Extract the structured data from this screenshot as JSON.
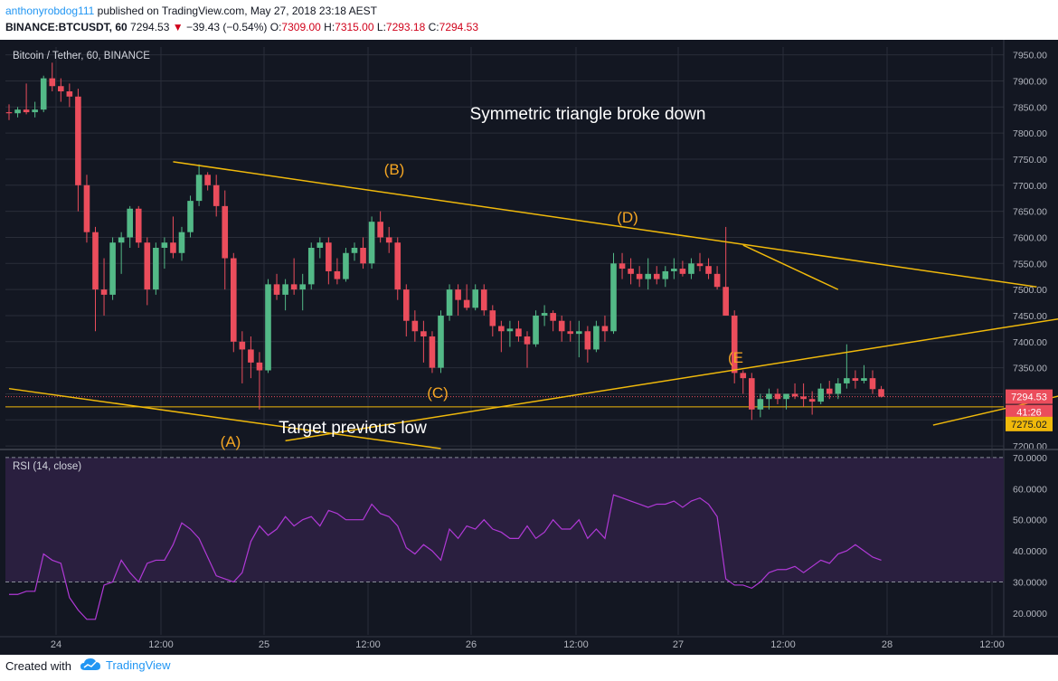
{
  "header": {
    "author": "anthonyrobdog111",
    "published_text": " published on TradingView.com, May 27, 2018 23:18 AEST",
    "symbol": "BINANCE:BTCUSDT, 60",
    "price": "7294.53",
    "change": "−39.43 (−0.54%)",
    "o_label": "O:",
    "o_value": "7309.00",
    "h_label": "H:",
    "h_value": "7315.00",
    "l_label": "L:",
    "l_value": "7293.18",
    "c_label": "C:",
    "c_value": "7294.53"
  },
  "colors": {
    "background": "#131722",
    "grid": "#2a2e39",
    "up": "#53b987",
    "down": "#eb4d5c",
    "trendline": "#f0b90b",
    "annotation": "#f5a623",
    "rsi_line": "#b039d6",
    "rsi_band": "#2a1f3f"
  },
  "chart_data": [
    {
      "type": "candlestick",
      "title": "Bitcoin / Tether, 60, BINANCE",
      "x_tick_labels": [
        "24",
        "12:00",
        "25",
        "12:00",
        "26",
        "12:00",
        "27",
        "12:00",
        "28",
        "12:00"
      ],
      "y_tick_labels": [
        "7950.00",
        "7900.00",
        "7850.00",
        "7800.00",
        "7750.00",
        "7700.00",
        "7650.00",
        "7600.00",
        "7550.00",
        "7500.00",
        "7450.00",
        "7400.00",
        "7350.00",
        "7300.00",
        "7250.00",
        "7200.00"
      ],
      "ylim": [
        7195,
        7965
      ],
      "price_tags": [
        {
          "label": "7294.53",
          "value": 7294.53
        },
        {
          "label": "41:26",
          "value": 7272
        },
        {
          "label": "7275.02",
          "value": 7275.02
        }
      ],
      "candles": [
        [
          7840,
          7855,
          7825,
          7838
        ],
        [
          7838,
          7850,
          7830,
          7845
        ],
        [
          7845,
          7895,
          7836,
          7840
        ],
        [
          7840,
          7860,
          7830,
          7845
        ],
        [
          7845,
          7910,
          7840,
          7905
        ],
        [
          7905,
          7935,
          7880,
          7890
        ],
        [
          7890,
          7905,
          7860,
          7880
        ],
        [
          7880,
          7895,
          7850,
          7870
        ],
        [
          7870,
          7885,
          7650,
          7700
        ],
        [
          7700,
          7720,
          7590,
          7610
        ],
        [
          7610,
          7620,
          7420,
          7500
        ],
        [
          7500,
          7560,
          7450,
          7490
        ],
        [
          7490,
          7600,
          7480,
          7590
        ],
        [
          7590,
          7610,
          7530,
          7600
        ],
        [
          7600,
          7660,
          7580,
          7655
        ],
        [
          7655,
          7660,
          7580,
          7590
        ],
        [
          7590,
          7600,
          7470,
          7500
        ],
        [
          7500,
          7590,
          7490,
          7580
        ],
        [
          7580,
          7600,
          7540,
          7590
        ],
        [
          7590,
          7640,
          7560,
          7570
        ],
        [
          7570,
          7620,
          7555,
          7610
        ],
        [
          7610,
          7680,
          7600,
          7670
        ],
        [
          7670,
          7740,
          7660,
          7720
        ],
        [
          7720,
          7725,
          7690,
          7700
        ],
        [
          7700,
          7720,
          7640,
          7660
        ],
        [
          7660,
          7690,
          7500,
          7560
        ],
        [
          7560,
          7570,
          7380,
          7400
        ],
        [
          7400,
          7420,
          7320,
          7385
        ],
        [
          7385,
          7410,
          7330,
          7360
        ],
        [
          7360,
          7380,
          7270,
          7345
        ],
        [
          7345,
          7520,
          7340,
          7510
        ],
        [
          7510,
          7530,
          7480,
          7490
        ],
        [
          7490,
          7520,
          7460,
          7510
        ],
        [
          7510,
          7560,
          7490,
          7500
        ],
        [
          7500,
          7530,
          7460,
          7510
        ],
        [
          7510,
          7590,
          7500,
          7580
        ],
        [
          7580,
          7600,
          7560,
          7590
        ],
        [
          7590,
          7600,
          7510,
          7535
        ],
        [
          7535,
          7560,
          7510,
          7520
        ],
        [
          7520,
          7580,
          7515,
          7570
        ],
        [
          7570,
          7590,
          7555,
          7580
        ],
        [
          7580,
          7600,
          7540,
          7550
        ],
        [
          7550,
          7640,
          7540,
          7630
        ],
        [
          7630,
          7650,
          7590,
          7600
        ],
        [
          7600,
          7620,
          7570,
          7590
        ],
        [
          7590,
          7600,
          7480,
          7500
        ],
        [
          7500,
          7510,
          7410,
          7440
        ],
        [
          7440,
          7460,
          7400,
          7420
        ],
        [
          7420,
          7440,
          7360,
          7410
        ],
        [
          7410,
          7420,
          7340,
          7350
        ],
        [
          7350,
          7460,
          7340,
          7450
        ],
        [
          7450,
          7510,
          7440,
          7500
        ],
        [
          7500,
          7510,
          7450,
          7480
        ],
        [
          7480,
          7510,
          7460,
          7465
        ],
        [
          7465,
          7510,
          7460,
          7500
        ],
        [
          7500,
          7510,
          7450,
          7460
        ],
        [
          7460,
          7470,
          7410,
          7430
        ],
        [
          7430,
          7440,
          7380,
          7420
        ],
        [
          7420,
          7440,
          7390,
          7425
        ],
        [
          7425,
          7440,
          7400,
          7410
        ],
        [
          7410,
          7420,
          7350,
          7395
        ],
        [
          7395,
          7460,
          7390,
          7450
        ],
        [
          7450,
          7470,
          7430,
          7455
        ],
        [
          7455,
          7460,
          7420,
          7440
        ],
        [
          7440,
          7450,
          7400,
          7420
        ],
        [
          7420,
          7440,
          7400,
          7415
        ],
        [
          7415,
          7440,
          7370,
          7420
        ],
        [
          7420,
          7430,
          7360,
          7385
        ],
        [
          7385,
          7440,
          7380,
          7430
        ],
        [
          7430,
          7450,
          7400,
          7420
        ],
        [
          7420,
          7570,
          7415,
          7550
        ],
        [
          7550,
          7570,
          7520,
          7540
        ],
        [
          7540,
          7560,
          7510,
          7530
        ],
        [
          7530,
          7545,
          7505,
          7520
        ],
        [
          7520,
          7560,
          7500,
          7530
        ],
        [
          7530,
          7545,
          7510,
          7520
        ],
        [
          7520,
          7545,
          7505,
          7535
        ],
        [
          7535,
          7560,
          7520,
          7540
        ],
        [
          7540,
          7555,
          7525,
          7530
        ],
        [
          7530,
          7560,
          7520,
          7550
        ],
        [
          7550,
          7570,
          7535,
          7545
        ],
        [
          7545,
          7560,
          7520,
          7530
        ],
        [
          7530,
          7545,
          7500,
          7505
        ],
        [
          7505,
          7620,
          7450,
          7450
        ],
        [
          7450,
          7460,
          7320,
          7340
        ],
        [
          7340,
          7345,
          7300,
          7330
        ],
        [
          7330,
          7340,
          7250,
          7270
        ],
        [
          7270,
          7300,
          7255,
          7290
        ],
        [
          7290,
          7310,
          7270,
          7300
        ],
        [
          7300,
          7310,
          7280,
          7290
        ],
        [
          7290,
          7300,
          7270,
          7300
        ],
        [
          7300,
          7320,
          7290,
          7295
        ],
        [
          7295,
          7320,
          7275,
          7290
        ],
        [
          7290,
          7305,
          7260,
          7285
        ],
        [
          7285,
          7320,
          7280,
          7310
        ],
        [
          7310,
          7325,
          7290,
          7300
        ],
        [
          7300,
          7330,
          7290,
          7320
        ],
        [
          7320,
          7395,
          7310,
          7330
        ],
        [
          7330,
          7345,
          7310,
          7325
        ],
        [
          7325,
          7355,
          7320,
          7330
        ],
        [
          7330,
          7345,
          7300,
          7309
        ],
        [
          7309,
          7315,
          7293,
          7294.53
        ]
      ],
      "annotations": [
        "Symmetric triangle broke down",
        "(B)",
        "(D)",
        "(E",
        "(C)",
        "(A)",
        "Target previous low"
      ],
      "trendlines": [
        {
          "name": "upper-triangle",
          "x": [
            19,
            119
          ],
          "y": [
            7745,
            7505
          ]
        },
        {
          "name": "lower-triangle",
          "x": [
            32,
            124
          ],
          "y": [
            7210,
            7450
          ]
        },
        {
          "name": "base-line",
          "x": [
            0,
            50
          ],
          "y": [
            7310,
            7195
          ]
        },
        {
          "name": "D-wedge",
          "x": [
            85,
            96
          ],
          "y": [
            7585,
            7500
          ]
        },
        {
          "name": "E-support",
          "x": [
            107,
            124
          ],
          "y": [
            7240,
            7305
          ]
        }
      ],
      "horizontal_levels": [
        7275.02
      ]
    },
    {
      "type": "line",
      "title": "RSI (14, close)",
      "ylim": [
        13,
        72
      ],
      "y_tick_labels": [
        "70.0000",
        "60.0000",
        "50.0000",
        "40.0000",
        "30.0000",
        "20.0000"
      ],
      "band": [
        30,
        70
      ],
      "values": [
        26,
        26,
        27,
        27,
        39,
        37,
        36,
        25,
        21,
        18,
        18,
        29,
        30,
        37,
        33,
        30,
        36,
        37,
        37,
        42,
        49,
        47,
        44,
        38,
        32,
        31,
        30,
        33,
        43,
        48,
        45,
        47,
        51,
        48,
        50,
        51,
        48,
        53,
        52,
        50,
        50,
        50,
        55,
        52,
        51,
        48,
        41,
        39,
        42,
        40,
        37,
        47,
        44,
        48,
        47,
        50,
        47,
        46,
        44,
        44,
        48,
        44,
        46,
        50,
        47,
        47,
        50,
        44,
        47,
        44,
        58,
        57,
        56,
        55,
        54,
        55,
        55,
        56,
        54,
        56,
        57,
        55,
        51,
        31,
        29,
        29,
        28,
        30,
        33,
        34,
        34,
        35,
        33,
        35,
        37,
        36,
        39,
        40,
        42,
        40,
        38,
        37
      ]
    }
  ],
  "footer": {
    "created_label": "Created with",
    "brand": "TradingView",
    "logo_icon": "tradingview-cloud-icon"
  }
}
